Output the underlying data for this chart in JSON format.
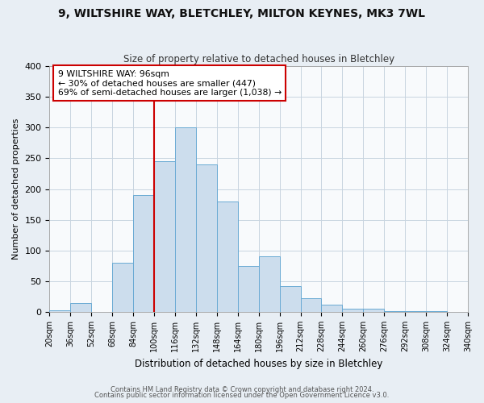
{
  "title1": "9, WILTSHIRE WAY, BLETCHLEY, MILTON KEYNES, MK3 7WL",
  "title2": "Size of property relative to detached houses in Bletchley",
  "xlabel": "Distribution of detached houses by size in Bletchley",
  "ylabel": "Number of detached properties",
  "bin_labels": [
    "20sqm",
    "36sqm",
    "52sqm",
    "68sqm",
    "84sqm",
    "100sqm",
    "116sqm",
    "132sqm",
    "148sqm",
    "164sqm",
    "180sqm",
    "196sqm",
    "212sqm",
    "228sqm",
    "244sqm",
    "260sqm",
    "276sqm",
    "292sqm",
    "308sqm",
    "324sqm",
    "340sqm"
  ],
  "bin_edges": [
    20,
    36,
    52,
    68,
    84,
    100,
    116,
    132,
    148,
    164,
    180,
    196,
    212,
    228,
    244,
    260,
    276,
    292,
    308,
    324,
    340
  ],
  "counts": [
    3,
    15,
    0,
    80,
    190,
    245,
    300,
    240,
    180,
    75,
    90,
    42,
    22,
    12,
    5,
    5,
    2,
    1,
    1,
    0,
    1
  ],
  "bar_color": "#ccdded",
  "bar_edge_color": "#6aaad4",
  "vline_x": 100,
  "vline_color": "#cc0000",
  "annotation_line1": "9 WILTSHIRE WAY: 96sqm",
  "annotation_line2": "← 30% of detached houses are smaller (447)",
  "annotation_line3": "69% of semi-detached houses are larger (1,038) →",
  "annotation_box_color": "#ffffff",
  "annotation_box_edge": "#cc0000",
  "ylim": [
    0,
    400
  ],
  "yticks": [
    0,
    50,
    100,
    150,
    200,
    250,
    300,
    350,
    400
  ],
  "footer1": "Contains HM Land Registry data © Crown copyright and database right 2024.",
  "footer2": "Contains public sector information licensed under the Open Government Licence v3.0.",
  "background_color": "#e8eef4",
  "plot_background": "#f8fafc",
  "grid_color": "#c8d4e0"
}
